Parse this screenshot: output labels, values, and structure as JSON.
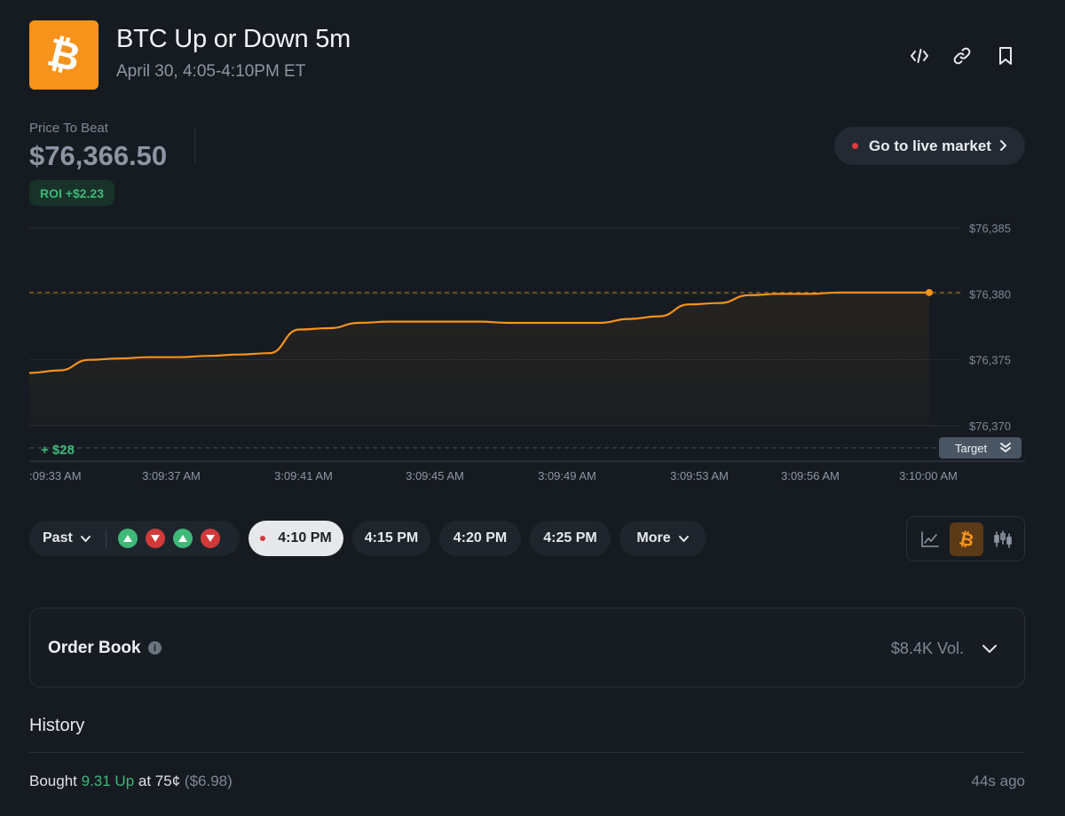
{
  "header": {
    "title": "BTC Up or Down 5m",
    "subtitle": "April 30, 4:05-4:10PM ET",
    "logo_icon": "bitcoin-icon",
    "actions": [
      "embed-code-icon",
      "link-icon",
      "bookmark-icon"
    ]
  },
  "price": {
    "label": "Price To Beat",
    "value": "$76,366.50",
    "roi": "ROI +$2.23"
  },
  "live_button": {
    "label": "Go to live market"
  },
  "chart_data": {
    "type": "line",
    "x_ticks": [
      ":09:33 AM",
      "3:09:37 AM",
      "3:09:41 AM",
      "3:09:45 AM",
      "3:09:49 AM",
      "3:09:53 AM",
      "3:09:56 AM",
      "3:10:00 AM"
    ],
    "y_ticks": [
      "$76,385",
      "$76,380",
      "$76,375",
      "$76,370"
    ],
    "ylim": [
      76368.5,
      76386
    ],
    "x": [
      0,
      1,
      2,
      3,
      4,
      5,
      6,
      7,
      8,
      9,
      10,
      11,
      12,
      13,
      14,
      15,
      16,
      17,
      18,
      19,
      20,
      21,
      22,
      23,
      24,
      25,
      26,
      27,
      28,
      29,
      30
    ],
    "series": [
      {
        "values": [
          76374.0,
          76374.2,
          76375.0,
          76375.1,
          76375.2,
          76375.2,
          76375.3,
          76375.4,
          76375.5,
          76377.3,
          76377.4,
          76377.8,
          76377.9,
          76377.9,
          76377.9,
          76377.9,
          76377.8,
          76377.8,
          76377.8,
          76377.8,
          76378.1,
          76378.3,
          76379.2,
          76379.3,
          76379.9,
          76380.0,
          76380.0,
          76380.1,
          76380.1,
          76380.1,
          76380.1
        ]
      }
    ],
    "reference_line": 76380.1,
    "target_offset_label": "+ $28",
    "target_label": "Target",
    "line_color": "#f7931a",
    "grid": true
  },
  "controls": {
    "past_label": "Past",
    "outcomes": [
      "up",
      "down",
      "up",
      "down"
    ],
    "times": [
      "4:10 PM",
      "4:15 PM",
      "4:20 PM",
      "4:25 PM"
    ],
    "active_time": "4:10 PM",
    "more_label": "More",
    "views": [
      "line-chart-icon",
      "bitcoin-icon",
      "candlestick-icon"
    ],
    "active_view": "bitcoin-icon"
  },
  "order_book": {
    "title": "Order Book",
    "volume": "$8.4K Vol."
  },
  "history": {
    "title": "History",
    "rows": [
      {
        "action": "Bought",
        "shares": "9.31 Up",
        "price": "at 75¢",
        "cost": "($6.98)",
        "time": "44s ago"
      }
    ]
  },
  "colors": {
    "background": "#161b21",
    "accent": "#f7931a",
    "up": "#3fb878",
    "down": "#d23a3a"
  }
}
